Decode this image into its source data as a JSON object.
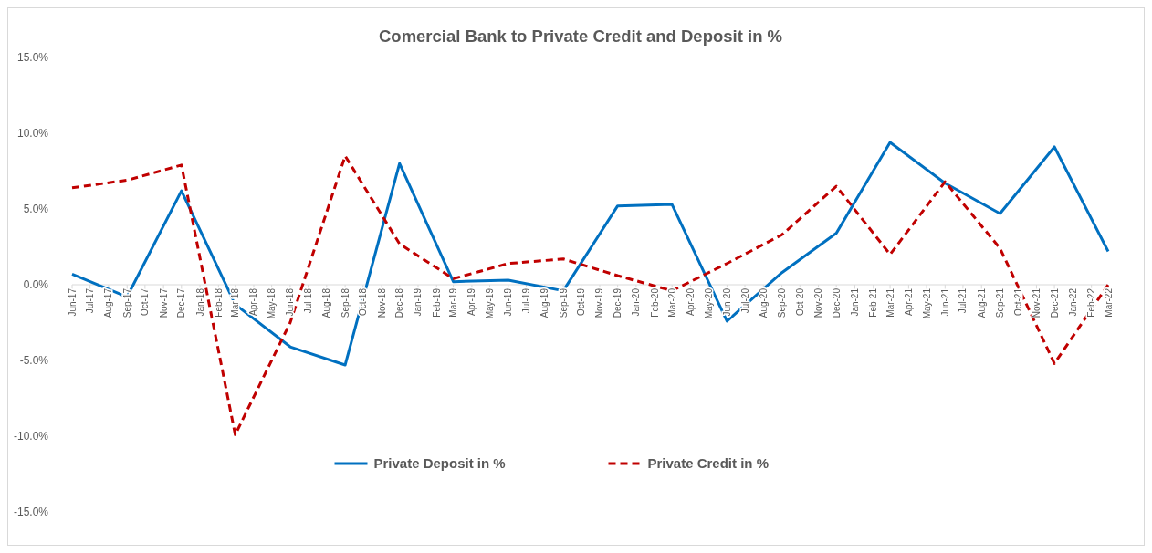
{
  "chart_data": {
    "type": "line",
    "title": "Comercial Bank to Private Credit and Deposit in %",
    "xlim": [
      "2017-06",
      "2022-03"
    ],
    "xticks": [
      {
        "value": "2017-06",
        "label": "Jun-17"
      },
      {
        "value": "2017-07",
        "label": "Jul-17"
      },
      {
        "value": "2017-08",
        "label": "Aug-17"
      },
      {
        "value": "2017-09",
        "label": "Sep-17"
      },
      {
        "value": "2017-10",
        "label": "Oct-17"
      },
      {
        "value": "2017-11",
        "label": "Nov-17"
      },
      {
        "value": "2017-12",
        "label": "Dec-17"
      },
      {
        "value": "2018-01",
        "label": "Jan-18"
      },
      {
        "value": "2018-02",
        "label": "Feb-18"
      },
      {
        "value": "2018-03",
        "label": "Mar-18"
      },
      {
        "value": "2018-04",
        "label": "Apr-18"
      },
      {
        "value": "2018-05",
        "label": "May-18"
      },
      {
        "value": "2018-06",
        "label": "Jun-18"
      },
      {
        "value": "2018-07",
        "label": "Jul-18"
      },
      {
        "value": "2018-08",
        "label": "Aug-18"
      },
      {
        "value": "2018-09",
        "label": "Sep-18"
      },
      {
        "value": "2018-10",
        "label": "Oct-18"
      },
      {
        "value": "2018-11",
        "label": "Nov-18"
      },
      {
        "value": "2018-12",
        "label": "Dec-18"
      },
      {
        "value": "2019-01",
        "label": "Jan-19"
      },
      {
        "value": "2019-02",
        "label": "Feb-19"
      },
      {
        "value": "2019-03",
        "label": "Mar-19"
      },
      {
        "value": "2019-04",
        "label": "Apr-19"
      },
      {
        "value": "2019-05",
        "label": "May-19"
      },
      {
        "value": "2019-06",
        "label": "Jun-19"
      },
      {
        "value": "2019-07",
        "label": "Jul-19"
      },
      {
        "value": "2019-08",
        "label": "Aug-19"
      },
      {
        "value": "2019-09",
        "label": "Sep-19"
      },
      {
        "value": "2019-10",
        "label": "Oct-19"
      },
      {
        "value": "2019-11",
        "label": "Nov-19"
      },
      {
        "value": "2019-12",
        "label": "Dec-19"
      },
      {
        "value": "2020-01",
        "label": "Jan-20"
      },
      {
        "value": "2020-02",
        "label": "Feb-20"
      },
      {
        "value": "2020-03",
        "label": "Mar-20"
      },
      {
        "value": "2020-04",
        "label": "Apr-20"
      },
      {
        "value": "2020-05",
        "label": "May-20"
      },
      {
        "value": "2020-06",
        "label": "Jun-20"
      },
      {
        "value": "2020-07",
        "label": "Jul-20"
      },
      {
        "value": "2020-08",
        "label": "Aug-20"
      },
      {
        "value": "2020-09",
        "label": "Sep-20"
      },
      {
        "value": "2020-10",
        "label": "Oct-20"
      },
      {
        "value": "2020-11",
        "label": "Nov-20"
      },
      {
        "value": "2020-12",
        "label": "Dec-20"
      },
      {
        "value": "2021-01",
        "label": "Jan-21"
      },
      {
        "value": "2021-02",
        "label": "Feb-21"
      },
      {
        "value": "2021-03",
        "label": "Mar-21"
      },
      {
        "value": "2021-04",
        "label": "Apr-21"
      },
      {
        "value": "2021-05",
        "label": "May-21"
      },
      {
        "value": "2021-06",
        "label": "Jun-21"
      },
      {
        "value": "2021-07",
        "label": "Jul-21"
      },
      {
        "value": "2021-08",
        "label": "Aug-21"
      },
      {
        "value": "2021-09",
        "label": "Sep-21"
      },
      {
        "value": "2021-10",
        "label": "Oct-21"
      },
      {
        "value": "2021-11",
        "label": "Nov-21"
      },
      {
        "value": "2021-12",
        "label": "Dec-21"
      },
      {
        "value": "2022-01",
        "label": "Jan-22"
      },
      {
        "value": "2022-02",
        "label": "Feb-22"
      },
      {
        "value": "2022-03",
        "label": "Mar-22"
      }
    ],
    "x": [
      "2017-06",
      "2017-09",
      "2017-12",
      "2018-03",
      "2018-06",
      "2018-09",
      "2018-12",
      "2019-03",
      "2019-06",
      "2019-09",
      "2019-12",
      "2020-03",
      "2020-06",
      "2020-09",
      "2020-12",
      "2021-03",
      "2021-06",
      "2021-09",
      "2021-12",
      "2022-03"
    ],
    "ylim": [
      -15,
      15
    ],
    "yticks": [
      {
        "value": -15,
        "label": "-15.0%"
      },
      {
        "value": -10,
        "label": "-10.0%"
      },
      {
        "value": -5,
        "label": "-5.0%"
      },
      {
        "value": 0,
        "label": "0.0%"
      },
      {
        "value": 5,
        "label": "5.0%"
      },
      {
        "value": 10,
        "label": "10.0%"
      },
      {
        "value": 15,
        "label": "15.0%"
      }
    ],
    "legend": "bottom",
    "series": [
      {
        "name": "Private Deposit in %",
        "color": "#0070c0",
        "line_style": "solid",
        "values": [
          0.7,
          -0.8,
          6.2,
          -1.3,
          -4.1,
          -5.3,
          8.0,
          0.2,
          0.3,
          -0.4,
          5.2,
          5.3,
          -2.4,
          0.8,
          3.4,
          9.4,
          6.7,
          4.7,
          9.1,
          2.2
        ]
      },
      {
        "name": "Private Credit in %",
        "color": "#c00000",
        "line_style": "dashed",
        "values": [
          6.4,
          6.9,
          7.9,
          -9.9,
          -2.5,
          8.5,
          2.7,
          0.4,
          1.4,
          1.7,
          0.6,
          -0.4,
          1.4,
          3.3,
          6.5,
          2.0,
          6.8,
          2.4,
          -5.2,
          0.0
        ]
      }
    ]
  }
}
